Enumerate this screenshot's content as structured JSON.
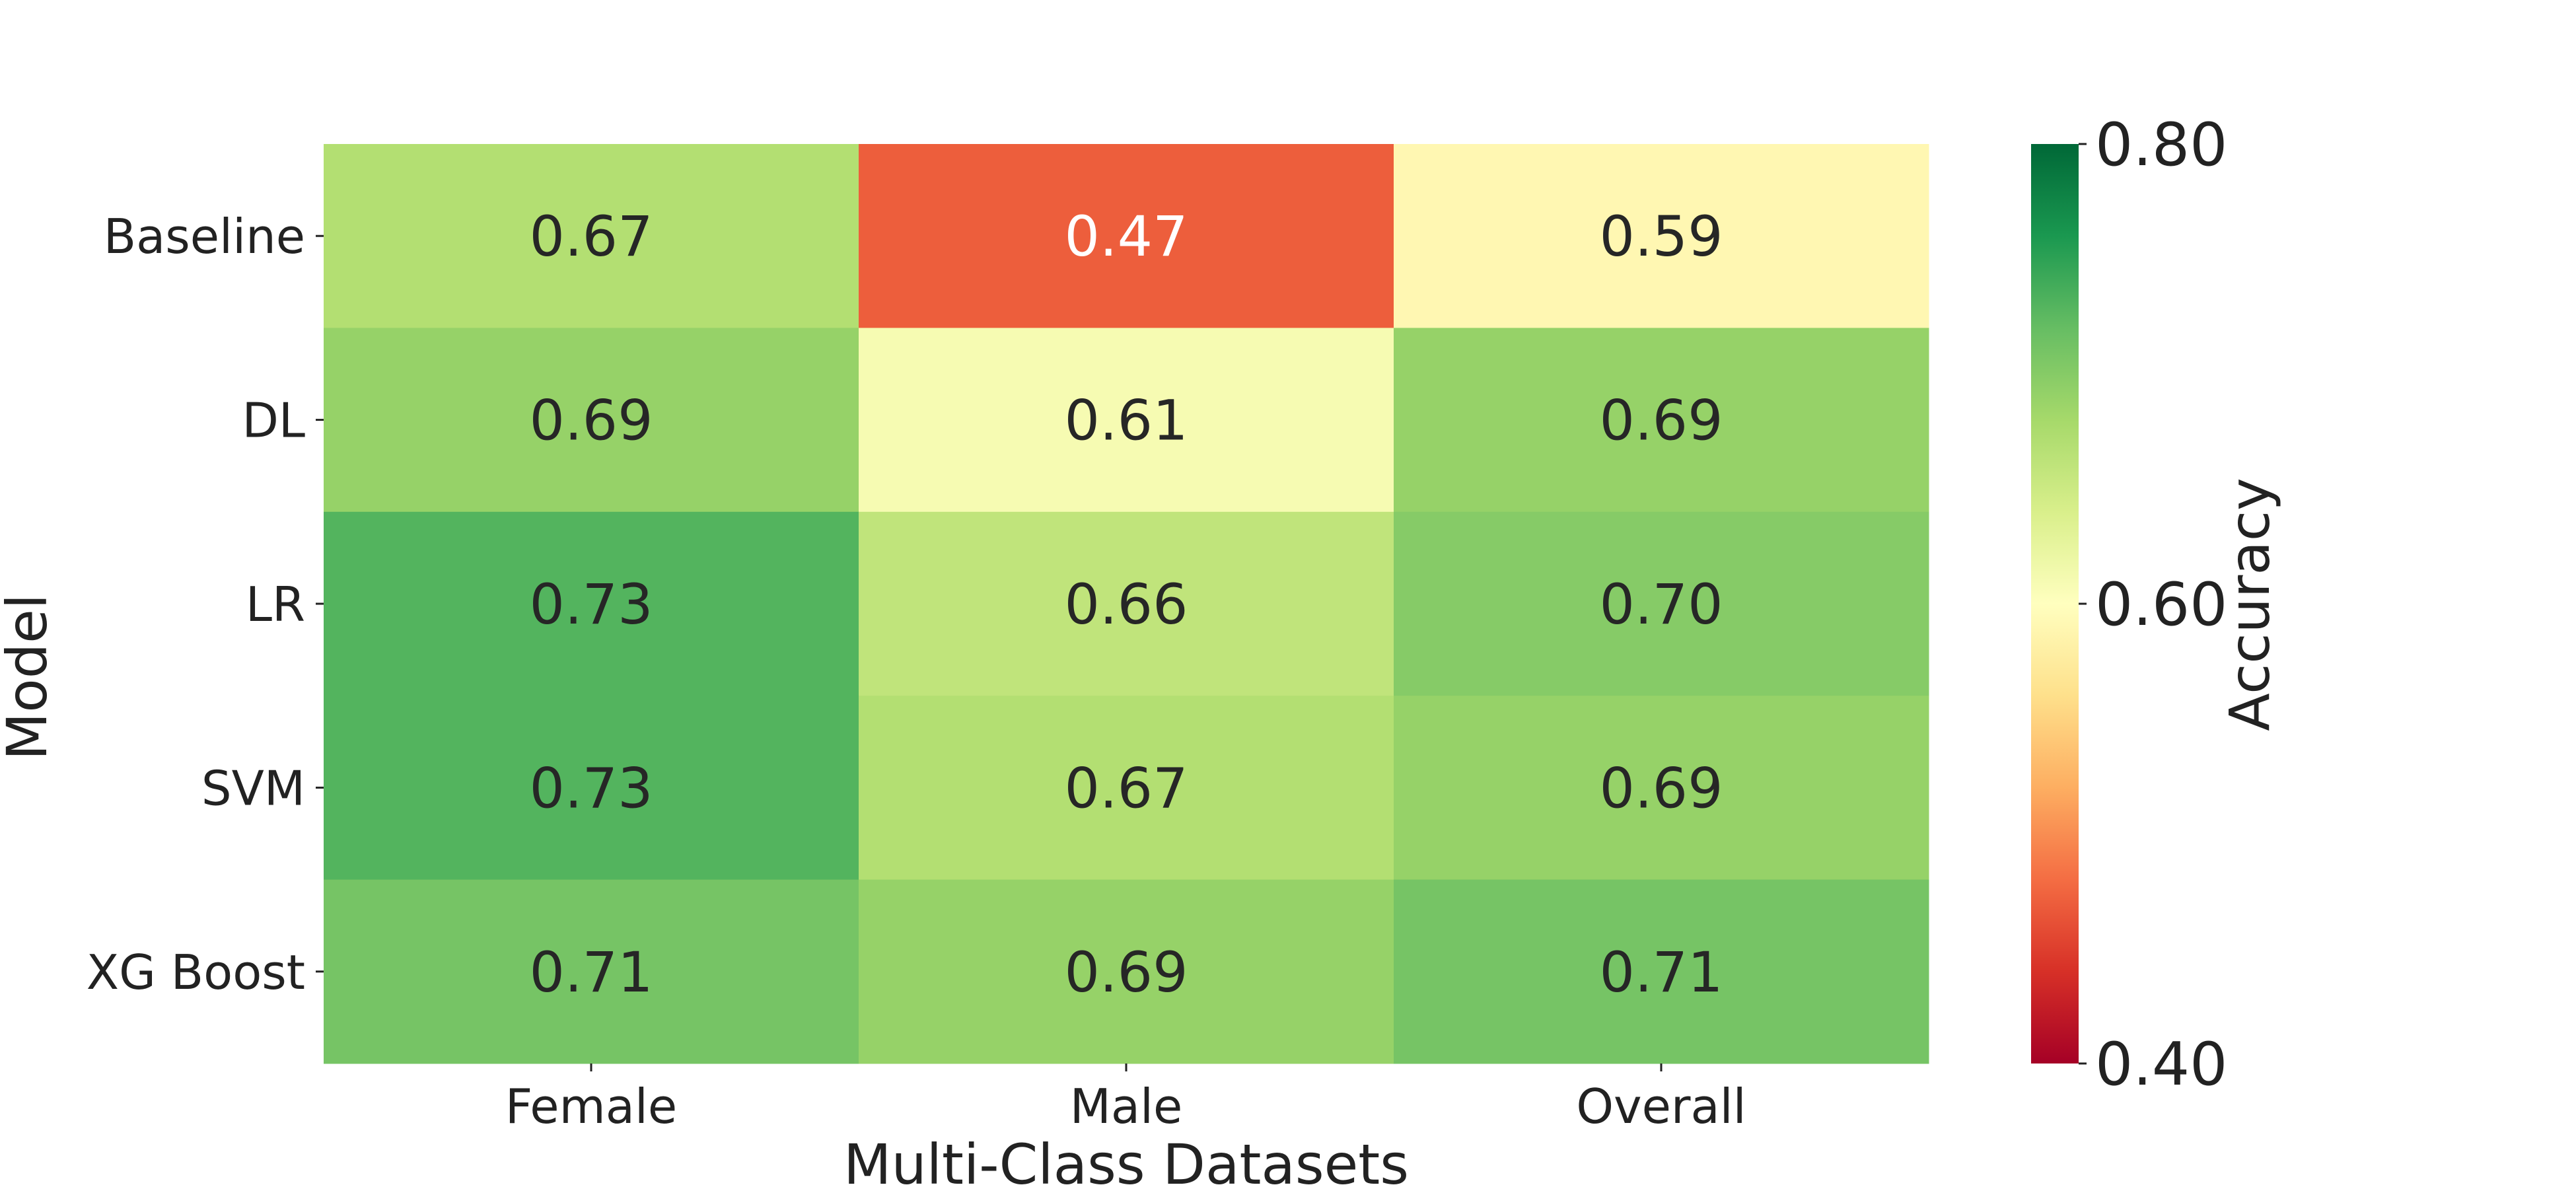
{
  "chart_data": {
    "type": "heatmap",
    "xlabel": "Multi-Class Datasets",
    "ylabel": "Model",
    "x_categories": [
      "Female",
      "Male",
      "Overall"
    ],
    "y_categories": [
      "Baseline",
      "DL",
      "LR",
      "SVM",
      "XG Boost"
    ],
    "values": [
      [
        0.67,
        0.47,
        0.59
      ],
      [
        0.69,
        0.61,
        0.69
      ],
      [
        0.73,
        0.66,
        0.7
      ],
      [
        0.73,
        0.67,
        0.69
      ],
      [
        0.71,
        0.69,
        0.71
      ]
    ],
    "value_labels": [
      [
        "0.67",
        "0.47",
        "0.59"
      ],
      [
        "0.69",
        "0.61",
        "0.69"
      ],
      [
        "0.73",
        "0.66",
        "0.70"
      ],
      [
        "0.73",
        "0.67",
        "0.69"
      ],
      [
        "0.71",
        "0.69",
        "0.71"
      ]
    ],
    "colorbar": {
      "label": "Accuracy",
      "vmin": 0.4,
      "vmax": 0.8,
      "ticks": [
        0.4,
        0.6,
        0.8
      ],
      "tick_labels": [
        "0.40",
        "0.60",
        "0.80"
      ],
      "colormap": "RdYlGn"
    }
  }
}
